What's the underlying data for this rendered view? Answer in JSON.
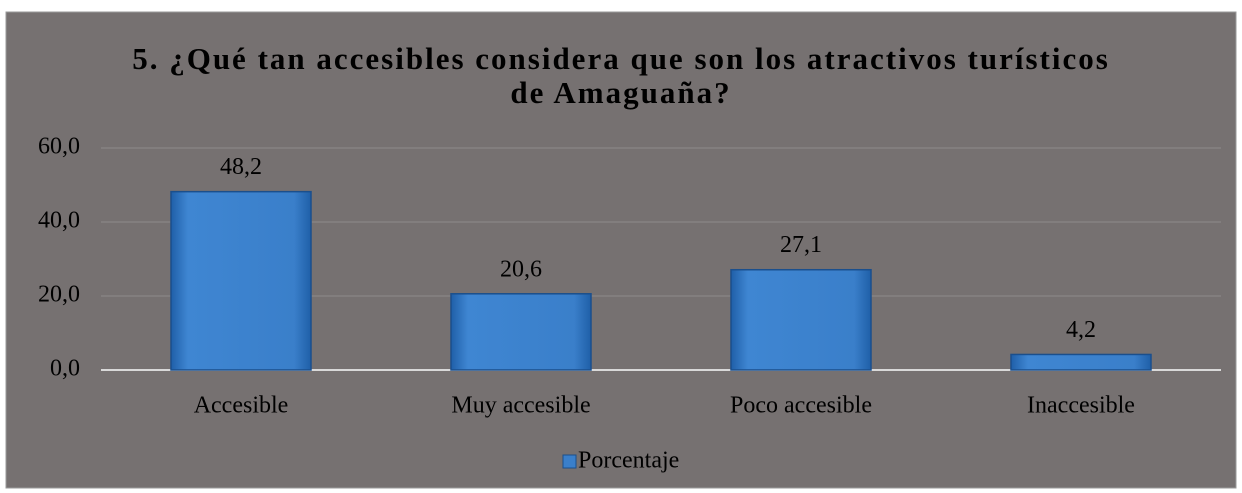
{
  "chart_data": {
    "type": "bar",
    "title": "5. ¿Qué tan accesibles considera que son los atractivos turísticos de Amaguaña?",
    "categories": [
      "Accesible",
      "Muy accesible",
      "Poco accesible",
      "Inaccesible"
    ],
    "series": [
      {
        "name": "Porcentaje",
        "color": "#3a7fca",
        "values": [
          48.2,
          20.6,
          27.1,
          4.2
        ],
        "value_labels": [
          "48,2",
          "20,6",
          "27,1",
          "4,2"
        ]
      }
    ],
    "ylim": [
      0,
      60
    ],
    "yticks": [
      {
        "value": 0,
        "label": "0,0"
      },
      {
        "value": 20,
        "label": "20,0"
      },
      {
        "value": 40,
        "label": "40,0"
      },
      {
        "value": 60,
        "label": "60,0"
      }
    ],
    "grid": true,
    "legend": "bottom"
  }
}
